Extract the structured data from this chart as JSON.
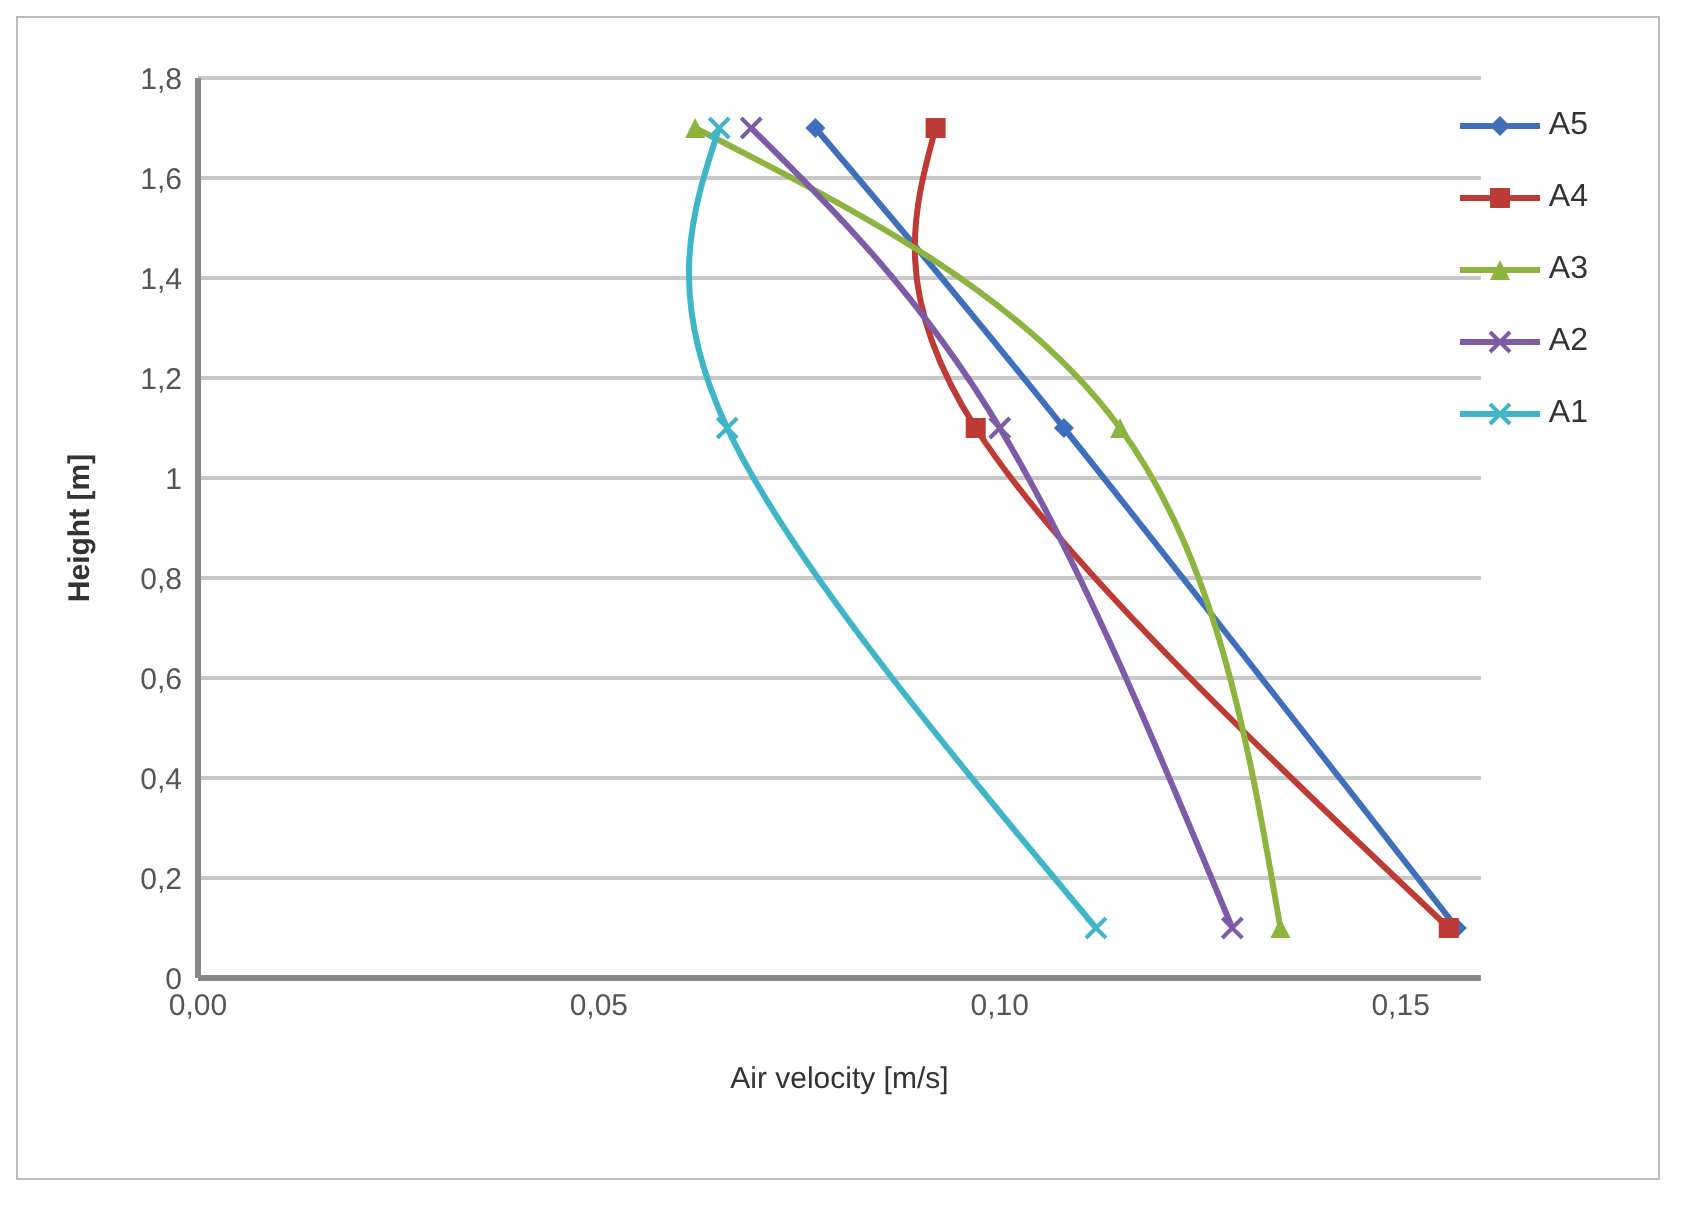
{
  "chart_data": {
    "type": "line",
    "xlabel": "Air velocity [m/s]",
    "ylabel": "Height [m]",
    "xlim": [
      0,
      0.16
    ],
    "xticks": [
      {
        "value": 0,
        "label": "0,00"
      },
      {
        "value": 0.05,
        "label": "0,05"
      },
      {
        "value": 0.1,
        "label": "0,10"
      },
      {
        "value": 0.15,
        "label": "0,15"
      }
    ],
    "ylim": [
      0,
      1.8
    ],
    "yticks": [
      0,
      {
        "value": 0.2,
        "label": "0,2"
      },
      {
        "value": 0.4,
        "label": "0,4"
      },
      {
        "value": 0.6,
        "label": "0,6"
      },
      {
        "value": 0.8,
        "label": "0,8"
      },
      1,
      {
        "value": 1.2,
        "label": "1,2"
      },
      {
        "value": 1.4,
        "label": "1,4"
      },
      {
        "value": 1.6,
        "label": "1,6"
      },
      {
        "value": 1.8,
        "label": "1,8"
      }
    ],
    "grid": "y",
    "legend": "right",
    "series": [
      {
        "name": "A5",
        "color": "#3f6fba",
        "marker": "diamond",
        "x": [
          0.157,
          0.108,
          0.077
        ],
        "values": [
          0.1,
          1.1,
          1.7
        ]
      },
      {
        "name": "A4",
        "color": "#be3a34",
        "marker": "square",
        "x": [
          0.156,
          0.097,
          0.092
        ],
        "values": [
          0.1,
          1.1,
          1.7
        ]
      },
      {
        "name": "A3",
        "color": "#8db43e",
        "marker": "triangle",
        "x": [
          0.135,
          0.115,
          0.062
        ],
        "values": [
          0.1,
          1.1,
          1.7
        ]
      },
      {
        "name": "A2",
        "color": "#7d5ba6",
        "marker": "cross",
        "x": [
          0.129,
          0.1,
          0.069
        ],
        "values": [
          0.1,
          1.1,
          1.7
        ]
      },
      {
        "name": "A1",
        "color": "#3fb5c8",
        "marker": "cross",
        "x": [
          0.112,
          0.066,
          0.065
        ],
        "values": [
          0.1,
          1.1,
          1.7
        ]
      }
    ]
  }
}
